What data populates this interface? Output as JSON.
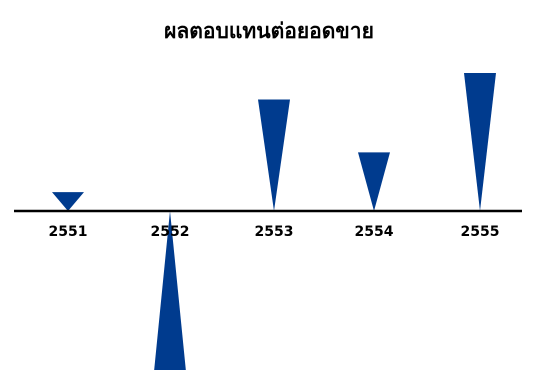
{
  "chart_data": {
    "type": "bar",
    "title": "ผลตอบแทนต่อยอดขาย",
    "categories": [
      "2551",
      "2552",
      "2553",
      "2554",
      "2555"
    ],
    "values": [
      1.0,
      -8.5,
      5.9,
      3.1,
      7.3
    ],
    "ylim": [
      -8.5,
      7.3
    ],
    "grid": false,
    "legend": "none",
    "bar_shape": "triangle",
    "bar_color": "#003b8e",
    "axis_color": "#000000"
  }
}
